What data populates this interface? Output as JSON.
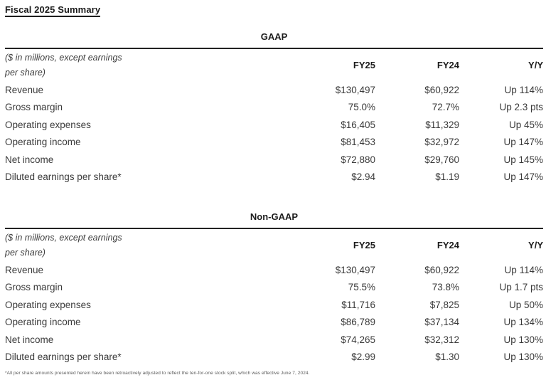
{
  "page_title": "Fiscal 2025 Summary",
  "tables": [
    {
      "section_title": "GAAP",
      "note_line1": "($ in millions, except earnings",
      "note_line2": "per share)",
      "columns": [
        "FY25",
        "FY24",
        "Y/Y"
      ],
      "rows": [
        {
          "label": "Revenue",
          "fy25": "$130,497",
          "fy24": "$60,922",
          "yy": "Up 114%"
        },
        {
          "label": "Gross margin",
          "fy25": "75.0%",
          "fy24": "72.7%",
          "yy": "Up 2.3 pts"
        },
        {
          "label": "Operating expenses",
          "fy25": "$16,405",
          "fy24": "$11,329",
          "yy": "Up 45%"
        },
        {
          "label": "Operating income",
          "fy25": "$81,453",
          "fy24": "$32,972",
          "yy": "Up 147%"
        },
        {
          "label": "Net income",
          "fy25": "$72,880",
          "fy24": "$29,760",
          "yy": "Up 145%"
        },
        {
          "label": "Diluted earnings per share*",
          "fy25": "$2.94",
          "fy24": "$1.19",
          "yy": "Up 147%"
        }
      ]
    },
    {
      "section_title": "Non-GAAP",
      "note_line1": "($ in millions, except earnings",
      "note_line2": "per share)",
      "columns": [
        "FY25",
        "FY24",
        "Y/Y"
      ],
      "rows": [
        {
          "label": "Revenue",
          "fy25": "$130,497",
          "fy24": "$60,922",
          "yy": "Up 114%"
        },
        {
          "label": "Gross margin",
          "fy25": "75.5%",
          "fy24": "73.8%",
          "yy": "Up 1.7 pts"
        },
        {
          "label": "Operating expenses",
          "fy25": "$11,716",
          "fy24": "$7,825",
          "yy": "Up 50%"
        },
        {
          "label": "Operating income",
          "fy25": "$86,789",
          "fy24": "$37,134",
          "yy": "Up 134%"
        },
        {
          "label": "Net income",
          "fy25": "$74,265",
          "fy24": "$32,312",
          "yy": "Up 130%"
        },
        {
          "label": "Diluted earnings per share*",
          "fy25": "$2.99",
          "fy24": "$1.30",
          "yy": "Up 130%"
        }
      ]
    }
  ],
  "footnote": "*All per share amounts presented herein have been retroactively adjusted to reflect the ten-for-one stock split, which was effective June 7, 2024."
}
